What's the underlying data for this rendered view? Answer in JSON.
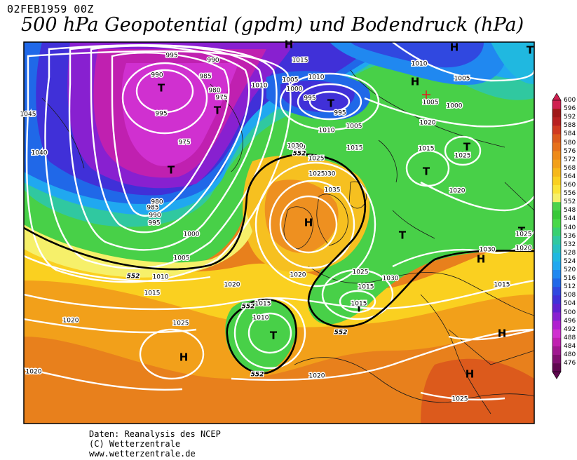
{
  "header": {
    "date": "02FEB1959 00Z",
    "title": "500 hPa Geopotential (gpdm) und Bodendruck (hPa)"
  },
  "footer": {
    "line1": "Daten: Reanalysis des NCEP",
    "line2": "(C) Wetterzentrale",
    "line3": "www.wetterzentrale.de"
  },
  "colorbar": {
    "labels": [
      "600",
      "596",
      "592",
      "588",
      "584",
      "580",
      "576",
      "572",
      "568",
      "564",
      "560",
      "556",
      "552",
      "548",
      "544",
      "540",
      "536",
      "532",
      "528",
      "524",
      "520",
      "516",
      "512",
      "508",
      "504",
      "500",
      "496",
      "492",
      "488",
      "484",
      "480",
      "476"
    ],
    "colors": [
      "#d02050",
      "#a01818",
      "#b82020",
      "#d03a20",
      "#dc5a1c",
      "#e6701a",
      "#ee8a18",
      "#f2a01a",
      "#f6b81a",
      "#fad020",
      "#fbe438",
      "#f6f06a",
      "#4cd24c",
      "#38c838",
      "#48d848",
      "#38d070",
      "#30c8a0",
      "#28c0c0",
      "#20b8e0",
      "#20a8f0",
      "#2088f0",
      "#2068e8",
      "#3048e0",
      "#4030d8",
      "#6020d0",
      "#8820d0",
      "#b020d0",
      "#d030d0",
      "#c020b0",
      "#a01890",
      "#801070",
      "#600850"
    ]
  },
  "map": {
    "centers": [
      {
        "label": "H",
        "kind": "high"
      },
      {
        "label": "H",
        "kind": "high"
      },
      {
        "label": "H",
        "kind": "high"
      },
      {
        "label": "H",
        "kind": "high"
      },
      {
        "label": "H",
        "kind": "high"
      },
      {
        "label": "H",
        "kind": "high"
      },
      {
        "label": "H",
        "kind": "high"
      },
      {
        "label": "H",
        "kind": "high"
      },
      {
        "label": "T",
        "kind": "low"
      },
      {
        "label": "T",
        "kind": "low"
      },
      {
        "label": "T",
        "kind": "low"
      },
      {
        "label": "T",
        "kind": "low"
      },
      {
        "label": "T",
        "kind": "low"
      },
      {
        "label": "T",
        "kind": "low"
      },
      {
        "label": "T",
        "kind": "low"
      },
      {
        "label": "T",
        "kind": "low"
      },
      {
        "label": "T",
        "kind": "low"
      },
      {
        "label": "T",
        "kind": "low"
      },
      {
        "label": "T",
        "kind": "low"
      }
    ],
    "isobar_labels": [
      "995",
      "990",
      "985",
      "980",
      "975",
      "995",
      "990",
      "975",
      "980",
      "985",
      "990",
      "995",
      "1000",
      "1005",
      "1010",
      "1015",
      "1010",
      "1005",
      "1000",
      "995",
      "995",
      "1015",
      "1010",
      "1005",
      "1010",
      "1015",
      "1020",
      "1025",
      "1030",
      "1035",
      "1020",
      "1020",
      "1025",
      "1015",
      "1005",
      "1010",
      "1005",
      "1000",
      "1040",
      "1045",
      "1030",
      "1025",
      "1020",
      "1015",
      "1010",
      "1020",
      "1025",
      "1020",
      "1015",
      "1020",
      "1025",
      "1015",
      "1025",
      "1020",
      "1030",
      "1015",
      "1030",
      "1020",
      "1025"
    ],
    "contour_labels": [
      "552",
      "552",
      "552",
      "552",
      "552"
    ]
  }
}
